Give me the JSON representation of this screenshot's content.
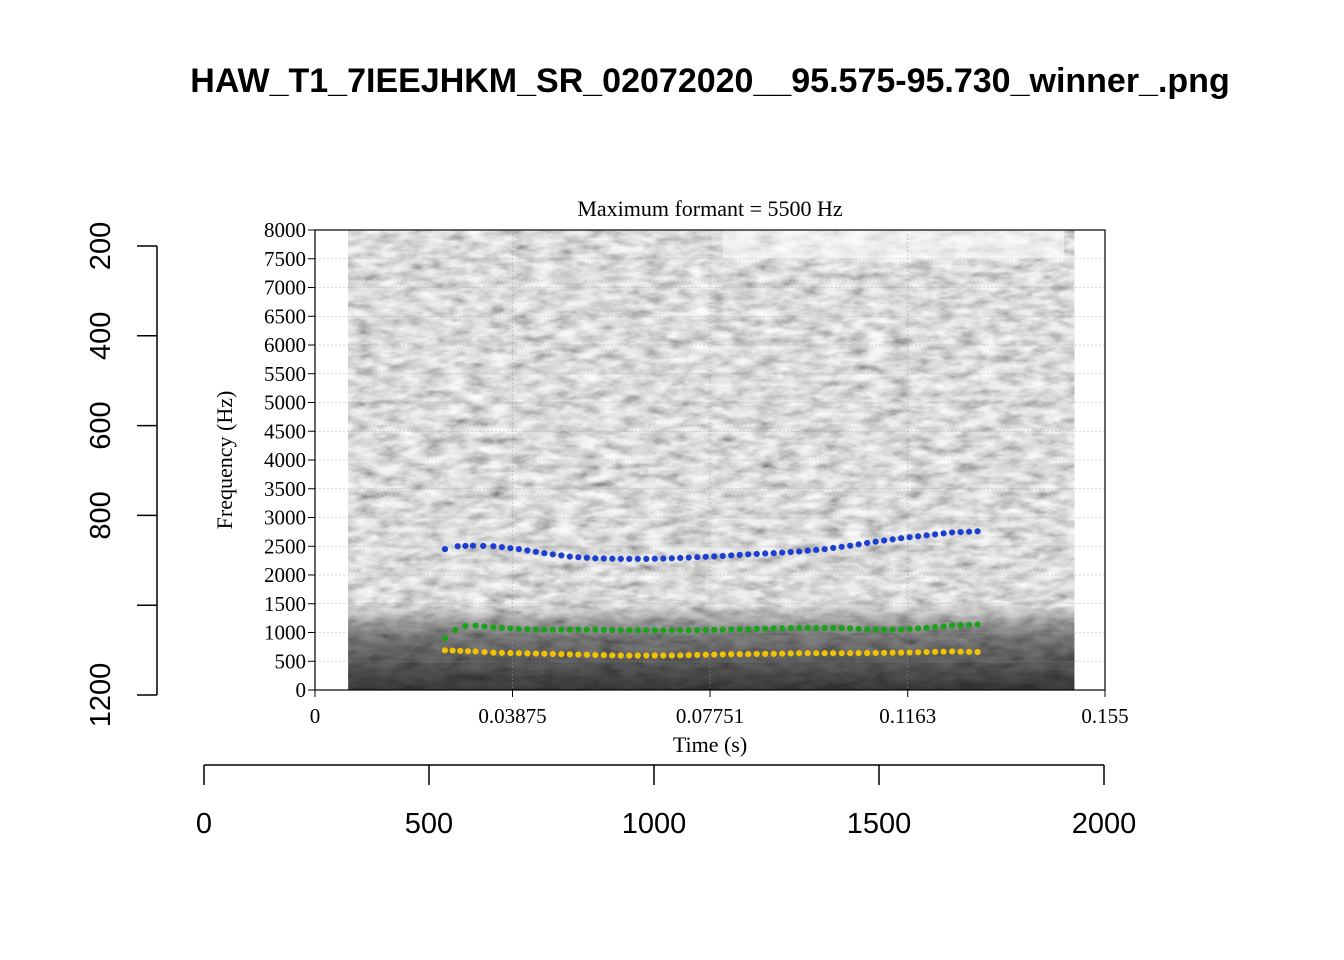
{
  "chart_data": {
    "type": "scatter",
    "title": "HAW_T1_7IEEJHKM_SR_02072020__95.575-95.730_winner_.png",
    "outer_axes": {
      "x": {
        "ticks": [
          0,
          500,
          1000,
          1500,
          2000
        ],
        "range": [
          0,
          2000
        ]
      },
      "y": {
        "ticks": [
          200,
          400,
          600,
          800,
          1200
        ],
        "range": [
          200,
          1200
        ],
        "reversed": true
      }
    },
    "spectrogram": {
      "title": "Maximum formant = 5500 Hz",
      "xlabel": "Time (s)",
      "ylabel": "Frequency (Hz)",
      "xlim": [
        0,
        0.155
      ],
      "ylim": [
        0,
        8000
      ],
      "x_tick_labels": [
        "0",
        "0.03875",
        "0.07751",
        "0.1163",
        "0.155"
      ],
      "y_tick_labels": [
        "0",
        "500",
        "1000",
        "1500",
        "2000",
        "2500",
        "3000",
        "3500",
        "4000",
        "4500",
        "5000",
        "5500",
        "6000",
        "6500",
        "7000",
        "7500",
        "8000"
      ],
      "grid": true,
      "signal_range": [
        0.0065,
        0.149
      ],
      "series": [
        {
          "color": "#f2c200",
          "points": [
            [
              0.0255,
              690
            ],
            [
              0.0285,
              680
            ],
            [
              0.0315,
              670
            ],
            [
              0.035,
              650
            ],
            [
              0.04,
              640
            ],
            [
              0.045,
              630
            ],
            [
              0.05,
              620
            ],
            [
              0.055,
              610
            ],
            [
              0.06,
              600
            ],
            [
              0.065,
              600
            ],
            [
              0.07,
              600
            ],
            [
              0.075,
              610
            ],
            [
              0.08,
              620
            ],
            [
              0.085,
              625
            ],
            [
              0.09,
              630
            ],
            [
              0.095,
              640
            ],
            [
              0.1,
              640
            ],
            [
              0.105,
              640
            ],
            [
              0.11,
              645
            ],
            [
              0.115,
              650
            ],
            [
              0.12,
              660
            ],
            [
              0.125,
              670
            ],
            [
              0.13,
              660
            ]
          ]
        },
        {
          "color": "#1aa31a",
          "points": [
            [
              0.0255,
              900
            ],
            [
              0.0275,
              1040
            ],
            [
              0.0295,
              1110
            ],
            [
              0.0315,
              1120
            ],
            [
              0.035,
              1090
            ],
            [
              0.04,
              1060
            ],
            [
              0.045,
              1050
            ],
            [
              0.05,
              1050
            ],
            [
              0.055,
              1050
            ],
            [
              0.06,
              1040
            ],
            [
              0.065,
              1040
            ],
            [
              0.07,
              1040
            ],
            [
              0.075,
              1040
            ],
            [
              0.08,
              1050
            ],
            [
              0.085,
              1060
            ],
            [
              0.09,
              1070
            ],
            [
              0.095,
              1080
            ],
            [
              0.1,
              1080
            ],
            [
              0.105,
              1070
            ],
            [
              0.11,
              1050
            ],
            [
              0.115,
              1050
            ],
            [
              0.12,
              1080
            ],
            [
              0.125,
              1120
            ],
            [
              0.13,
              1140
            ]
          ]
        },
        {
          "color": "#1a3fd1",
          "points": [
            [
              0.0255,
              2450
            ],
            [
              0.028,
              2500
            ],
            [
              0.031,
              2510
            ],
            [
              0.035,
              2500
            ],
            [
              0.04,
              2450
            ],
            [
              0.045,
              2380
            ],
            [
              0.05,
              2320
            ],
            [
              0.055,
              2290
            ],
            [
              0.06,
              2280
            ],
            [
              0.065,
              2280
            ],
            [
              0.07,
              2290
            ],
            [
              0.075,
              2310
            ],
            [
              0.08,
              2330
            ],
            [
              0.085,
              2360
            ],
            [
              0.09,
              2380
            ],
            [
              0.095,
              2410
            ],
            [
              0.1,
              2450
            ],
            [
              0.105,
              2510
            ],
            [
              0.11,
              2580
            ],
            [
              0.115,
              2640
            ],
            [
              0.12,
              2690
            ],
            [
              0.125,
              2740
            ],
            [
              0.13,
              2760
            ]
          ]
        }
      ]
    }
  }
}
